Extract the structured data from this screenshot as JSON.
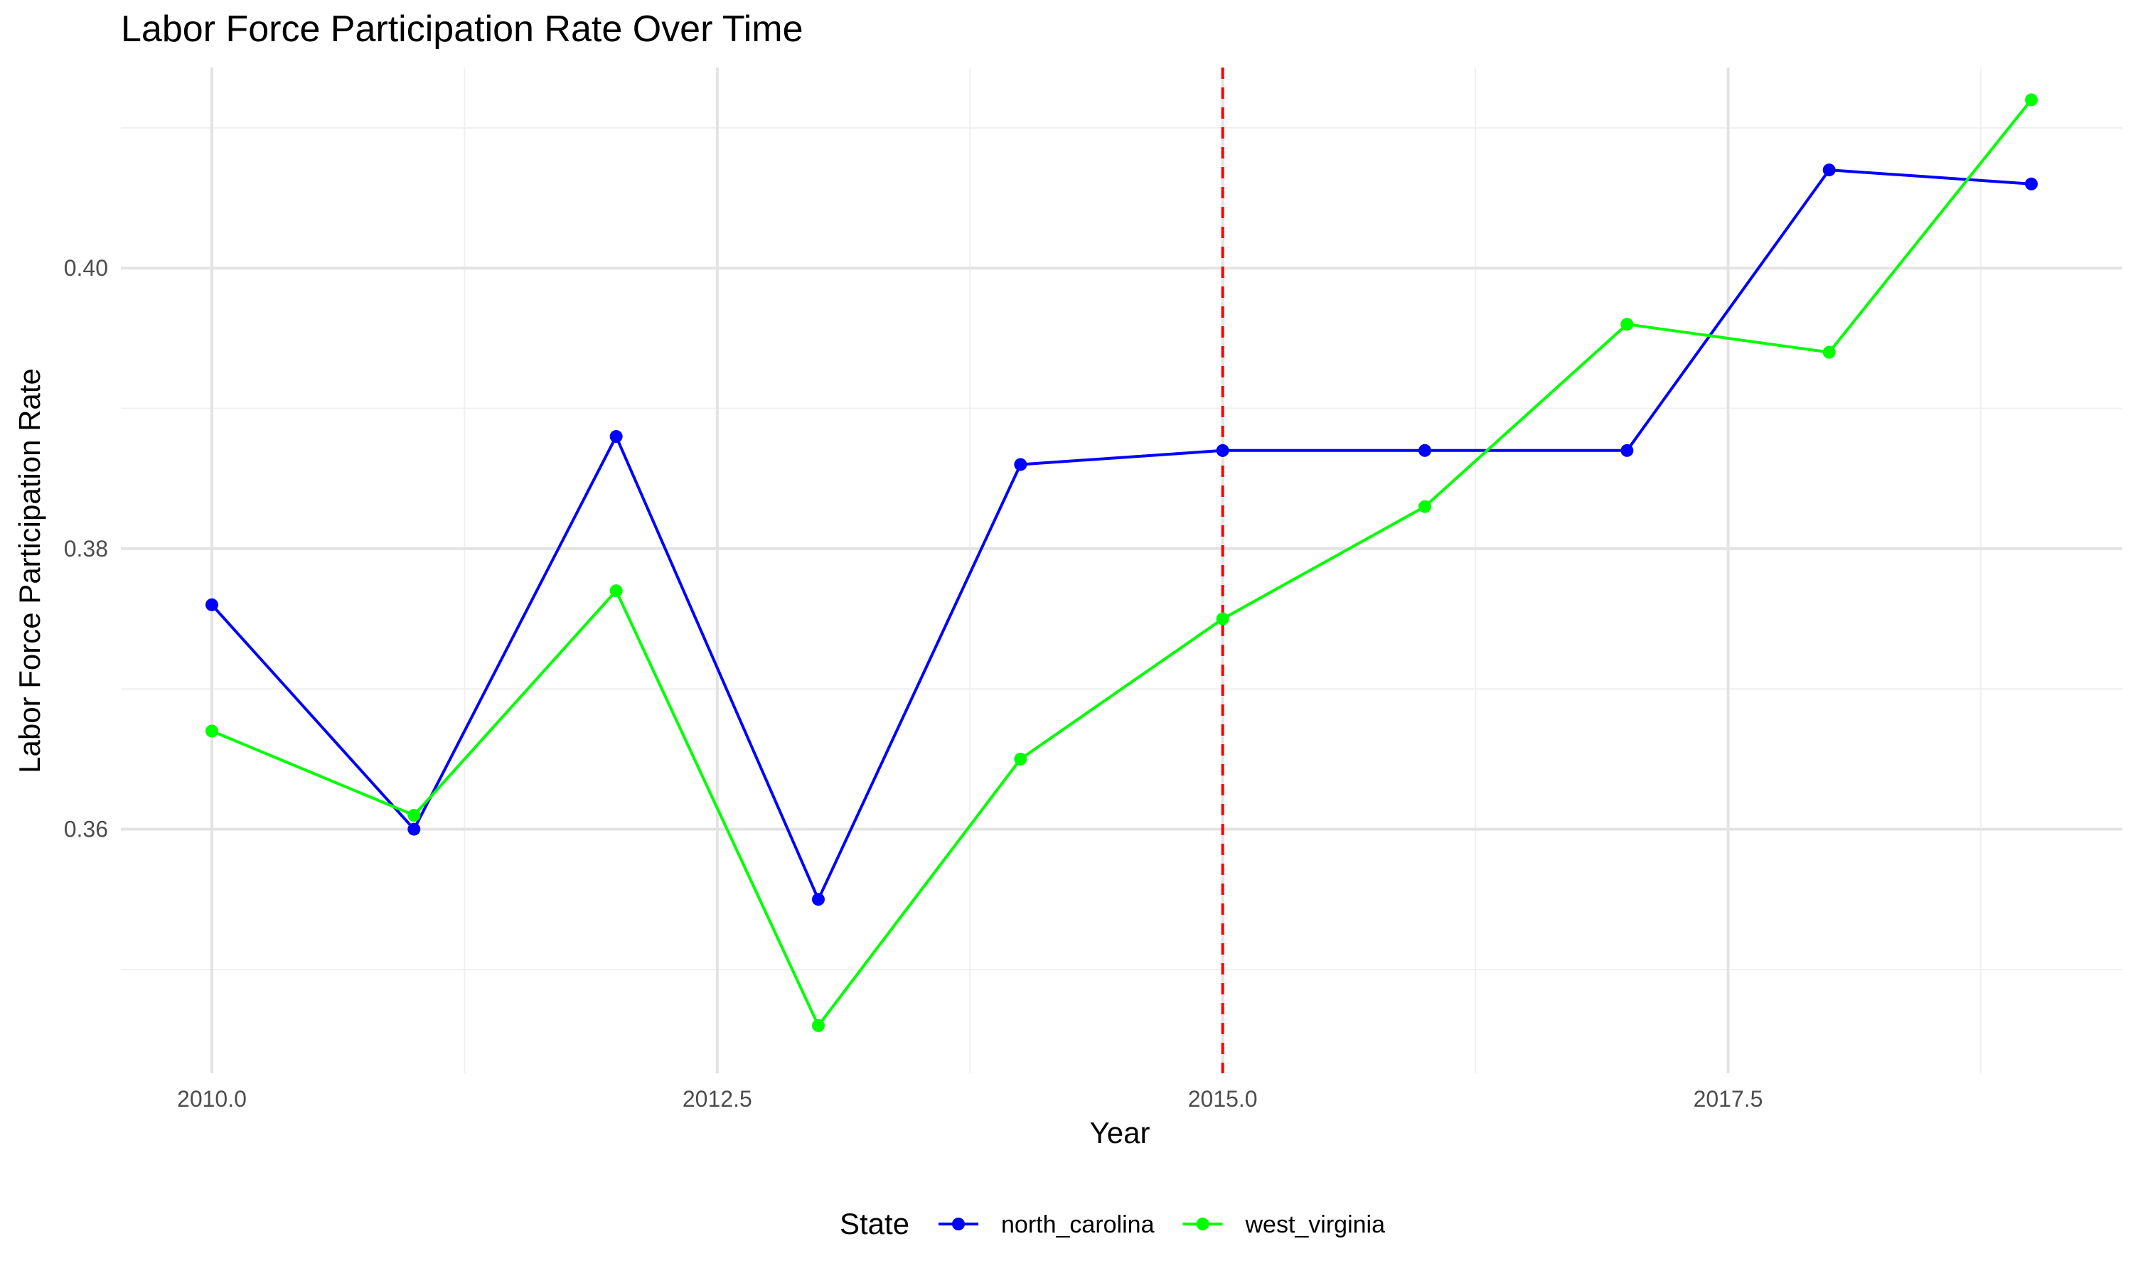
{
  "chart_data": {
    "type": "line",
    "title": "Labor Force Participation Rate Over Time",
    "xlabel": "Year",
    "ylabel": "Labor Force Participation Rate",
    "x": [
      2010,
      2011,
      2012,
      2013,
      2014,
      2015,
      2016,
      2017,
      2018,
      2019
    ],
    "xlim": [
      2009.55,
      2019.45
    ],
    "ylim": [
      0.3426,
      0.4143
    ],
    "x_ticks": [
      2010.0,
      2012.5,
      2015.0,
      2017.5
    ],
    "x_tick_labels": [
      "2010.0",
      "2012.5",
      "2015.0",
      "2017.5"
    ],
    "y_ticks": [
      0.36,
      0.38,
      0.4
    ],
    "y_tick_labels": [
      "0.36",
      "0.38",
      "0.40"
    ],
    "x_minor_ticks": [
      2011.25,
      2013.75,
      2016.25,
      2018.75
    ],
    "y_minor_ticks": [
      0.35,
      0.37,
      0.39,
      0.41
    ],
    "grid": true,
    "legend": {
      "title": "State",
      "position": "bottom"
    },
    "series": [
      {
        "name": "north_carolina",
        "color": "#0000FF",
        "values": [
          0.376,
          0.36,
          0.388,
          0.355,
          0.386,
          0.387,
          0.387,
          0.387,
          0.407,
          0.406
        ]
      },
      {
        "name": "west_virginia",
        "color": "#00FF00",
        "values": [
          0.367,
          0.361,
          0.377,
          0.346,
          0.365,
          0.375,
          0.383,
          0.396,
          0.394,
          0.412
        ]
      }
    ],
    "annotations": [
      {
        "type": "vline",
        "x": 2015,
        "color": "#FF0000",
        "linestyle": "dashed"
      }
    ]
  }
}
